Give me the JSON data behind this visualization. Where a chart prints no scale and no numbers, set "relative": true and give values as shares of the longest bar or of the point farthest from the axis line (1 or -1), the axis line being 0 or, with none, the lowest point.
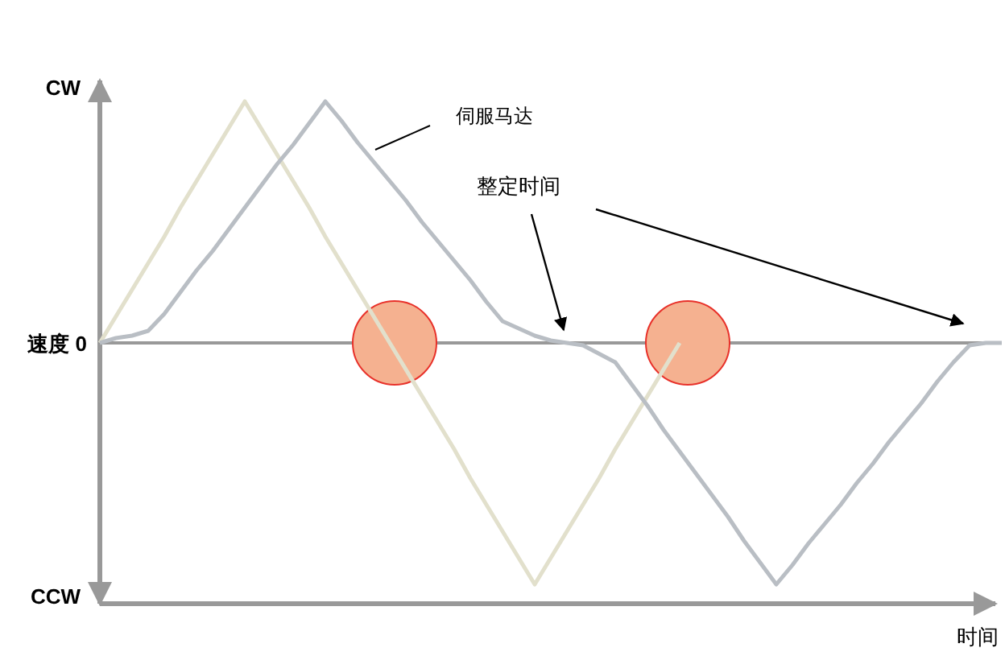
{
  "chart_data": {
    "type": "line",
    "relative": true,
    "xlabel": "时间",
    "annotations": [
      "CW",
      "速度 0",
      "CCW",
      "整定时间"
    ],
    "categories": [
      null,
      null,
      null,
      null,
      null,
      null,
      null,
      null,
      null,
      null,
      null,
      null,
      null,
      null,
      null,
      null,
      null,
      null,
      null,
      null,
      null,
      null,
      null,
      null,
      null,
      null,
      null,
      null,
      null,
      null,
      null,
      null,
      null,
      null,
      null,
      null,
      null,
      null,
      null,
      null,
      null,
      null,
      null,
      null,
      null,
      null,
      null,
      null,
      null,
      null,
      null,
      null,
      null,
      null,
      null,
      null,
      null
    ],
    "series": [
      {
        "color": "#e2e0cc",
        "values": [
          0,
          0.11,
          0.22,
          0.33,
          0.44,
          0.56,
          0.67,
          0.78,
          0.89,
          1,
          0.89,
          0.78,
          0.67,
          0.56,
          0.44,
          0.33,
          0.22,
          0.11,
          0,
          -0.11,
          -0.22,
          -0.33,
          -0.44,
          -0.56,
          -0.67,
          -0.78,
          -0.89,
          -1,
          -0.89,
          -0.78,
          -0.67,
          -0.56,
          -0.44,
          -0.33,
          -0.22,
          -0.11,
          0,
          null,
          null,
          null,
          null,
          null,
          null,
          null,
          null,
          null,
          null,
          null,
          null,
          null,
          null,
          null,
          null,
          null,
          null,
          null,
          null
        ]
      },
      {
        "name": "伺服马达",
        "color": "#b9bec4",
        "values": [
          0,
          0.02,
          0.03,
          0.05,
          0.12,
          0.21,
          0.3,
          0.38,
          0.47,
          0.56,
          0.65,
          0.74,
          0.82,
          0.91,
          1,
          0.92,
          0.83,
          0.75,
          0.67,
          0.59,
          0.5,
          0.42,
          0.34,
          0.26,
          0.17,
          0.09,
          0.06,
          0.03,
          0.01,
          0,
          -0.01,
          -0.045,
          -0.08,
          -0.17,
          -0.26,
          -0.36,
          -0.45,
          -0.54,
          -0.63,
          -0.72,
          -0.82,
          -0.91,
          -1,
          -0.92,
          -0.83,
          -0.75,
          -0.67,
          -0.58,
          -0.5,
          -0.41,
          -0.33,
          -0.25,
          -0.16,
          -0.08,
          -0.01,
          0,
          0
        ]
      }
    ]
  }
}
